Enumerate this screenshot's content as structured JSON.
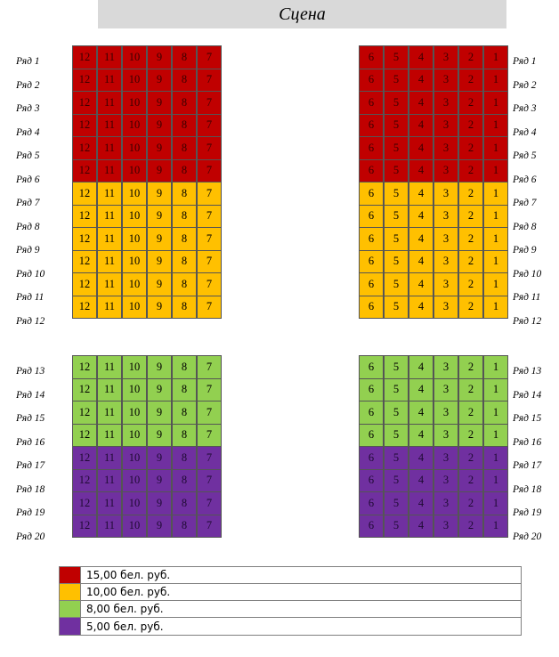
{
  "stage": {
    "label": "Сцена"
  },
  "left_rows_top": [
    "Ряд 1",
    "Ряд 2",
    "Ряд 3",
    "Ряд 4",
    "Ряд 5",
    "Ряд 6",
    "Ряд 7",
    "Ряд 8",
    "Ряд 9",
    "Ряд 10",
    "Ряд 11",
    "Ряд 12"
  ],
  "right_rows_top": [
    "Ряд 1",
    "Ряд 2",
    "Ряд 3",
    "Ряд 4",
    "Ряд 5",
    "Ряд 6",
    "Ряд 7",
    "Ряд 8",
    "Ряд 9",
    "Ряд 10",
    "Ряд 11",
    "Ряд 12"
  ],
  "left_rows_bottom": [
    "Ряд 13",
    "Ряд 14",
    "Ряд 15",
    "Ряд 16",
    "Ряд 17",
    "Ряд 18",
    "Ряд 19",
    "Ряд 20"
  ],
  "right_rows_bottom": [
    "Ряд 13",
    "Ряд 14",
    "Ряд 15",
    "Ряд 16",
    "Ряд 17",
    "Ряд 18",
    "Ряд 19",
    "Ряд 20"
  ],
  "seats_left": [
    "12",
    "11",
    "10",
    "9",
    "8",
    "7"
  ],
  "seats_right": [
    "6",
    "5",
    "4",
    "3",
    "2",
    "1"
  ],
  "row_price_tier": {
    "top": [
      0,
      0,
      0,
      0,
      0,
      0,
      1,
      1,
      1,
      1,
      1,
      1
    ],
    "bottom": [
      2,
      2,
      2,
      2,
      3,
      3,
      3,
      3
    ]
  },
  "legend": [
    {
      "label": "15,00 бел. руб.",
      "color": "#c00000"
    },
    {
      "label": "10,00 бел. руб.",
      "color": "#ffc000"
    },
    {
      "label": "8,00 бел. руб.",
      "color": "#92d050"
    },
    {
      "label": "5,00 бел. руб.",
      "color": "#7030a0"
    }
  ]
}
